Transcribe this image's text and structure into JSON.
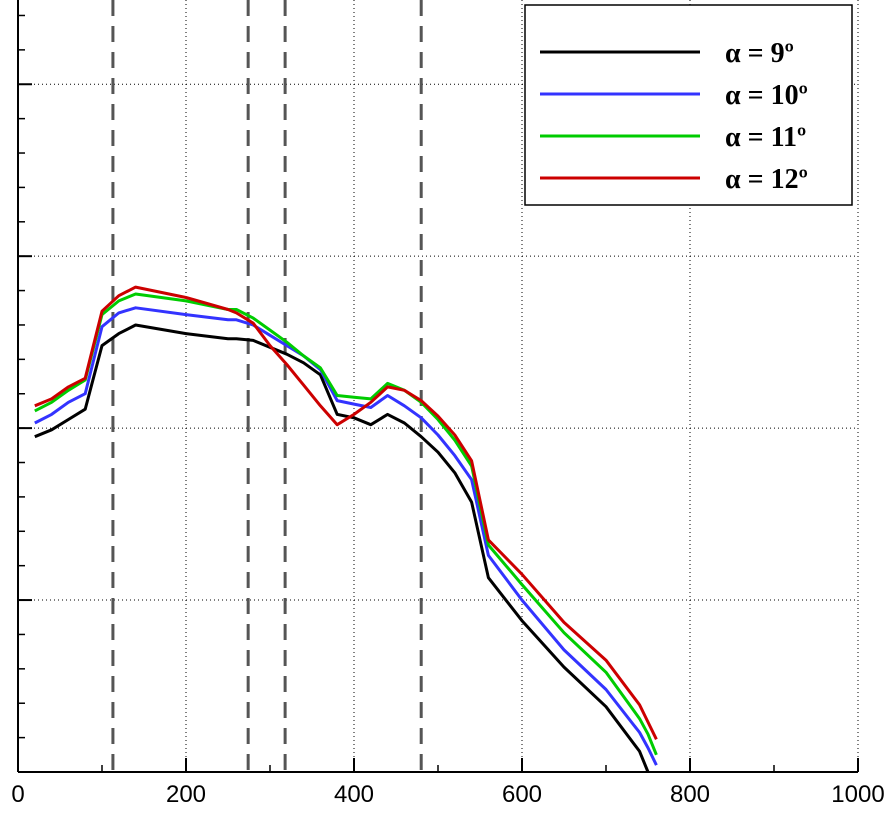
{
  "chart_data": {
    "type": "line",
    "x": [
      20,
      40,
      60,
      80,
      100,
      120,
      140,
      200,
      250,
      260,
      280,
      300,
      320,
      340,
      360,
      380,
      400,
      420,
      440,
      460,
      480,
      500,
      520,
      540,
      560,
      600,
      650,
      700,
      740,
      750,
      760
    ],
    "series": [
      {
        "name": "α = 9º",
        "color": "#000000",
        "values": [
          1.95,
          1.99,
          2.05,
          2.11,
          2.48,
          2.55,
          2.6,
          2.55,
          2.52,
          2.52,
          2.51,
          2.47,
          2.43,
          2.38,
          2.31,
          2.08,
          2.06,
          2.02,
          2.08,
          2.03,
          1.95,
          1.86,
          1.74,
          1.57,
          1.13,
          0.88,
          0.61,
          0.38,
          0.12,
          0,
          null
        ]
      },
      {
        "name": "α = 10º",
        "color": "#3333ff",
        "values": [
          2.03,
          2.08,
          2.15,
          2.2,
          2.59,
          2.67,
          2.7,
          2.66,
          2.63,
          2.63,
          2.6,
          2.54,
          2.48,
          2.42,
          2.34,
          2.16,
          2.14,
          2.12,
          2.19,
          2.13,
          2.06,
          1.96,
          1.84,
          1.7,
          1.26,
          1.0,
          0.71,
          0.48,
          0.23,
          0.14,
          0.04
        ]
      },
      {
        "name": "α = 11º",
        "color": "#00cc00",
        "values": [
          2.1,
          2.15,
          2.22,
          2.28,
          2.66,
          2.74,
          2.78,
          2.74,
          2.69,
          2.69,
          2.64,
          2.57,
          2.5,
          2.42,
          2.35,
          2.19,
          2.18,
          2.17,
          2.26,
          2.22,
          2.15,
          2.05,
          1.93,
          1.78,
          1.32,
          1.09,
          0.81,
          0.58,
          0.31,
          0.22,
          0.1
        ]
      },
      {
        "name": "α = 12º",
        "color": "#cc0000",
        "values": [
          2.13,
          2.17,
          2.24,
          2.29,
          2.68,
          2.77,
          2.82,
          2.76,
          2.69,
          2.67,
          2.61,
          2.48,
          2.37,
          2.25,
          2.13,
          2.02,
          2.08,
          2.15,
          2.24,
          2.22,
          2.16,
          2.07,
          1.96,
          1.81,
          1.35,
          1.15,
          0.87,
          0.65,
          0.39,
          0.29,
          0.19
        ]
      }
    ],
    "xlim": [
      0,
      1000
    ],
    "xticks": [
      0,
      200,
      400,
      600,
      800,
      1000
    ],
    "ylim": [
      0,
      4.49
    ],
    "yticks": [
      1,
      2,
      3,
      4
    ],
    "reference_lines": [
      113,
      274,
      318,
      480
    ],
    "grid": true,
    "legend": "upper right"
  }
}
